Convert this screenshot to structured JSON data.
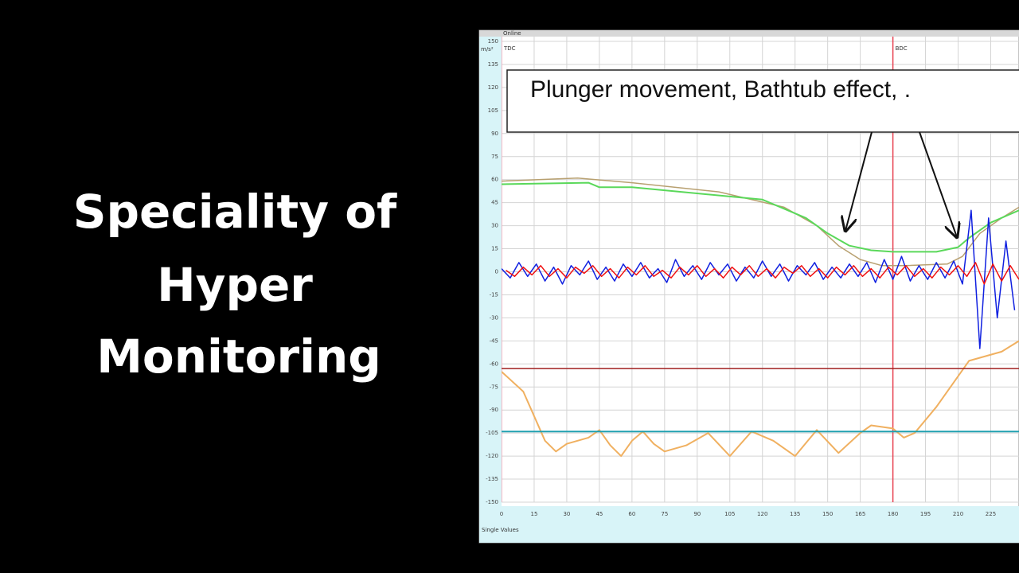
{
  "slide": {
    "title_lines": [
      "Speciality of",
      "Hyper",
      "Monitoring"
    ]
  },
  "chart_data": {
    "type": "line",
    "window_label": "Online",
    "y_unit": "m/s²",
    "footer_label": "Single Values",
    "annotation": "Plunger movement, Bathtub effect, .",
    "markers": [
      {
        "label": "TDC",
        "x": 0,
        "color": "#f4a0b0"
      },
      {
        "label": "BDC",
        "x": 180,
        "color": "#e84050"
      }
    ],
    "xlim": [
      0,
      238
    ],
    "ylim": [
      -150,
      150
    ],
    "xticks": [
      0,
      15,
      30,
      45,
      60,
      75,
      90,
      105,
      120,
      135,
      150,
      165,
      180,
      195,
      210,
      225
    ],
    "yticks": [
      -150,
      -135,
      -120,
      -105,
      -90,
      -75,
      -60,
      -45,
      -30,
      -15,
      0,
      15,
      30,
      45,
      60,
      75,
      90,
      105,
      120,
      135,
      150
    ],
    "grid": true,
    "series": [
      {
        "color": "#b8a070",
        "width": 1.5,
        "x": [
          0,
          35,
          60,
          100,
          130,
          145,
          155,
          165,
          175,
          185,
          205,
          212,
          220,
          230,
          238
        ],
        "values": [
          59,
          61,
          58,
          52,
          42,
          30,
          17,
          8,
          4,
          4,
          5,
          10,
          25,
          35,
          42
        ]
      },
      {
        "color": "#5ad85a",
        "width": 2,
        "x": [
          0,
          40,
          45,
          60,
          120,
          140,
          150,
          160,
          170,
          180,
          200,
          210,
          215,
          225,
          238
        ],
        "values": [
          57,
          58,
          55,
          55,
          47,
          35,
          25,
          17,
          14,
          13,
          13,
          16,
          22,
          32,
          40
        ]
      },
      {
        "color": "#f0b060",
        "width": 2,
        "x": [
          0,
          10,
          20,
          25,
          30,
          40,
          45,
          50,
          55,
          60,
          65,
          70,
          75,
          85,
          95,
          105,
          115,
          125,
          135,
          145,
          155,
          165,
          170,
          180,
          185,
          190,
          200,
          215,
          230,
          238
        ],
        "values": [
          -65,
          -78,
          -110,
          -117,
          -112,
          -108,
          -103,
          -113,
          -120,
          -110,
          -104,
          -112,
          -117,
          -113,
          -105,
          -120,
          -104,
          -110,
          -120,
          -103,
          -118,
          -105,
          -100,
          -102,
          -108,
          -105,
          -88,
          -58,
          -52,
          -45
        ]
      },
      {
        "color": "#a02020",
        "width": 1.5,
        "x": [
          0,
          238
        ],
        "values": [
          -63,
          -63
        ]
      },
      {
        "color": "#20a0b0",
        "width": 2,
        "x": [
          0,
          238
        ],
        "values": [
          -104,
          -104
        ]
      },
      {
        "color": "#1020e0",
        "width": 1.5,
        "x": [
          0,
          4,
          8,
          12,
          16,
          20,
          24,
          28,
          32,
          36,
          40,
          44,
          48,
          52,
          56,
          60,
          64,
          68,
          72,
          76,
          80,
          84,
          88,
          92,
          96,
          100,
          104,
          108,
          112,
          116,
          120,
          124,
          128,
          132,
          136,
          140,
          144,
          148,
          152,
          156,
          160,
          164,
          168,
          172,
          176,
          180,
          184,
          188,
          192,
          196,
          200,
          204,
          208,
          212,
          216,
          220,
          224,
          228,
          232,
          236
        ],
        "values": [
          2,
          -4,
          6,
          -3,
          5,
          -6,
          3,
          -8,
          4,
          -2,
          7,
          -5,
          3,
          -6,
          5,
          -3,
          6,
          -4,
          2,
          -7,
          8,
          -3,
          4,
          -5,
          6,
          -2,
          5,
          -6,
          3,
          -4,
          7,
          -3,
          5,
          -6,
          4,
          -2,
          6,
          -5,
          3,
          -4,
          5,
          -3,
          6,
          -7,
          8,
          -5,
          10,
          -6,
          4,
          -5,
          6,
          -4,
          7,
          -8,
          40,
          -50,
          35,
          -30,
          20,
          -25
        ]
      },
      {
        "color": "#f01010",
        "width": 1.5,
        "x": [
          2,
          6,
          10,
          14,
          18,
          22,
          26,
          30,
          34,
          38,
          42,
          46,
          50,
          54,
          58,
          62,
          66,
          70,
          74,
          78,
          82,
          86,
          90,
          94,
          98,
          102,
          106,
          110,
          114,
          118,
          122,
          126,
          130,
          134,
          138,
          142,
          146,
          150,
          154,
          158,
          162,
          166,
          170,
          174,
          178,
          182,
          186,
          190,
          194,
          198,
          202,
          206,
          210,
          214,
          218,
          222,
          226,
          230,
          234,
          238
        ],
        "values": [
          1,
          -3,
          3,
          -2,
          4,
          -3,
          2,
          -4,
          3,
          -1,
          4,
          -3,
          2,
          -4,
          3,
          -2,
          4,
          -3,
          1,
          -4,
          3,
          -2,
          4,
          -3,
          2,
          -4,
          3,
          -2,
          4,
          -3,
          2,
          -4,
          3,
          -1,
          4,
          -3,
          2,
          -4,
          3,
          -2,
          4,
          -3,
          2,
          -4,
          3,
          -2,
          4,
          -3,
          2,
          -4,
          3,
          -2,
          4,
          -3,
          6,
          -8,
          5,
          -6,
          4,
          -5
        ]
      }
    ]
  }
}
